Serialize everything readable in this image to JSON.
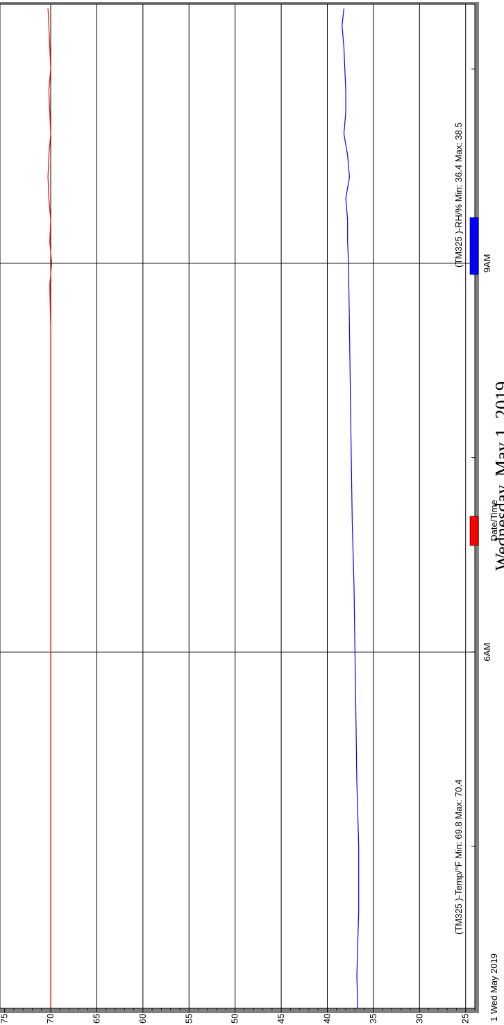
{
  "chart_data": {
    "type": "line",
    "title": "Wednesday, May 1, 2019",
    "xlabel": "Date/Time",
    "x_start_label": "1 Wed May 2019",
    "x_ticks": [
      {
        "time": "06:00",
        "label": "6AM"
      },
      {
        "time": "09:00",
        "label": "9AM"
      }
    ],
    "x_minor_ticks": [
      "04:30",
      "07:30",
      "10:30"
    ],
    "xlim": [
      "03:15",
      "11:00"
    ],
    "ylim": [
      24,
      75.5
    ],
    "y_ticks": [
      75,
      70,
      65,
      60,
      55,
      50,
      45,
      40,
      35,
      30,
      25
    ],
    "grid": true,
    "series": [
      {
        "name": "(TM325   )-Temp/°F Min: 69.8 Max: 70.4",
        "color": "#ff0000",
        "x": [
          "03:15",
          "03:30",
          "04:00",
          "04:30",
          "05:00",
          "05:30",
          "06:00",
          "06:30",
          "07:00",
          "07:30",
          "08:00",
          "08:30",
          "08:50",
          "09:00",
          "09:10",
          "09:20",
          "09:30",
          "09:40",
          "09:50",
          "10:00",
          "10:10",
          "10:20",
          "10:30",
          "10:40",
          "10:50",
          "10:58"
        ],
        "values": [
          70.0,
          70.0,
          70.0,
          70.0,
          70.0,
          70.0,
          70.0,
          70.0,
          70.0,
          70.0,
          70.0,
          70.0,
          70.1,
          69.9,
          70.1,
          70.0,
          70.2,
          70.3,
          70.2,
          70.0,
          70.1,
          70.2,
          70.0,
          70.1,
          70.2,
          70.3
        ]
      },
      {
        "name": "(TM325   )-RH/% Min: 36.4 Max: 38.5",
        "color": "#0000ff",
        "x": [
          "03:15",
          "03:30",
          "04:00",
          "04:30",
          "05:00",
          "05:30",
          "06:00",
          "06:30",
          "07:00",
          "07:30",
          "08:00",
          "08:30",
          "09:00",
          "09:10",
          "09:20",
          "09:30",
          "09:40",
          "09:50",
          "10:00",
          "10:10",
          "10:20",
          "10:30",
          "10:40",
          "10:50",
          "10:58"
        ],
        "values": [
          36.7,
          36.8,
          36.6,
          36.6,
          36.8,
          36.9,
          37.0,
          37.1,
          37.3,
          37.4,
          37.5,
          37.6,
          37.7,
          37.8,
          37.8,
          38.0,
          37.6,
          37.8,
          38.2,
          38.0,
          38.0,
          38.1,
          38.2,
          38.4,
          38.2
        ]
      }
    ]
  }
}
